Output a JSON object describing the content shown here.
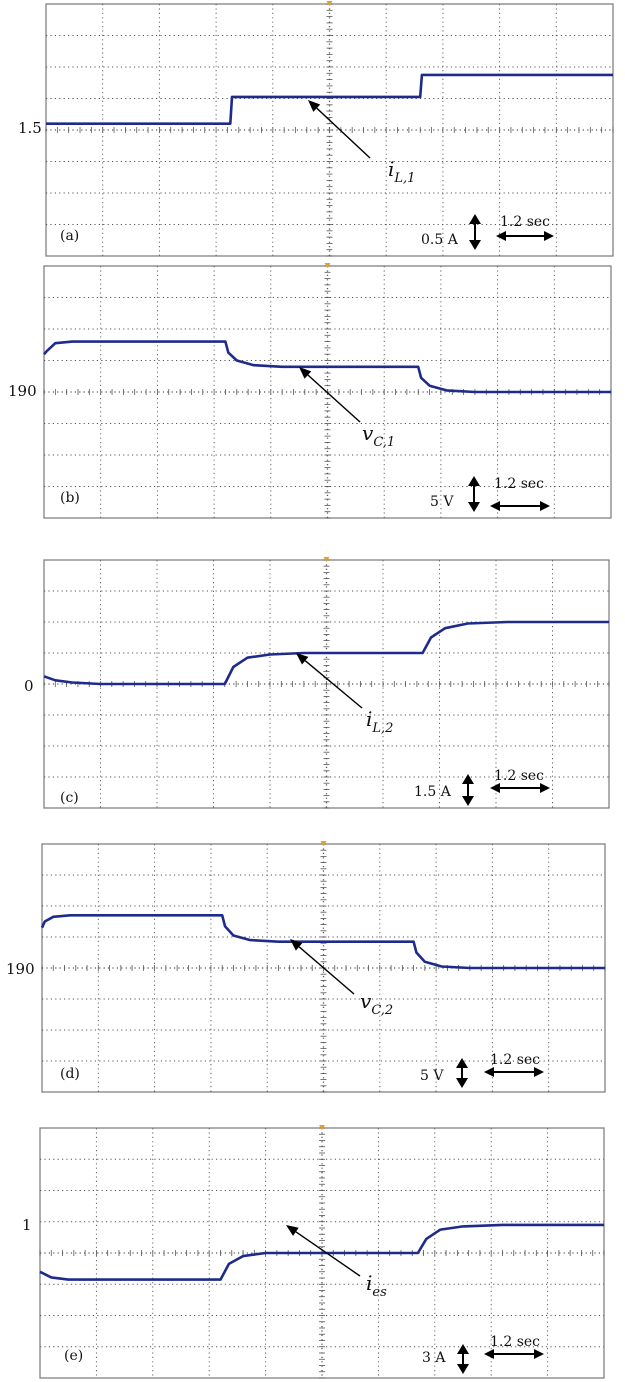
{
  "colors": {
    "trace": "#1f2b8a",
    "grid": "#555555",
    "frame": "#777777",
    "marker": "#e8a020"
  },
  "chart_data": [
    {
      "type": "line",
      "panel_label": "(a)",
      "ytick_label": "1.5",
      "signal": {
        "base": "i",
        "sub": "L,1"
      },
      "vertical_scale": "0.5 A",
      "time_scale": "1.2 sec",
      "xlim": [
        0,
        10
      ],
      "ylim": [
        -4,
        4
      ],
      "series": [
        {
          "x": [
            0,
            3.25,
            3.28,
            6.6,
            6.63,
            10
          ],
          "y": [
            0.2,
            0.2,
            1.05,
            1.05,
            1.75,
            1.75
          ]
        }
      ]
    },
    {
      "type": "line",
      "panel_label": "(b)",
      "ytick_label": "190",
      "signal": {
        "base": "v",
        "sub": "C,1"
      },
      "vertical_scale": "5 V",
      "time_scale": "1.2 sec",
      "xlim": [
        0,
        10
      ],
      "ylim": [
        -4,
        4
      ],
      "series": [
        {
          "x": [
            0,
            0.05,
            0.2,
            0.5,
            1.0,
            3.2,
            3.25,
            3.4,
            3.7,
            4.2,
            6.6,
            6.65,
            6.8,
            7.1,
            7.6,
            10
          ],
          "y": [
            1.2,
            1.3,
            1.55,
            1.6,
            1.6,
            1.6,
            1.25,
            1.0,
            0.85,
            0.8,
            0.8,
            0.45,
            0.2,
            0.05,
            0,
            0
          ]
        }
      ]
    },
    {
      "type": "line",
      "panel_label": "(c)",
      "ytick_label": "0",
      "signal": {
        "base": "i",
        "sub": "L,2"
      },
      "vertical_scale": "1.5 A",
      "time_scale": "1.2 sec",
      "xlim": [
        0,
        10
      ],
      "ylim": [
        -4,
        4
      ],
      "series": [
        {
          "x": [
            0,
            0.2,
            0.5,
            1.0,
            3.2,
            3.35,
            3.6,
            4.0,
            4.6,
            6.7,
            6.85,
            7.1,
            7.5,
            8.2,
            10
          ],
          "y": [
            0.25,
            0.12,
            0.05,
            0,
            0,
            0.55,
            0.85,
            0.95,
            1.0,
            1.0,
            1.5,
            1.8,
            1.95,
            2.0,
            2.0
          ]
        }
      ]
    },
    {
      "type": "line",
      "panel_label": "(d)",
      "ytick_label": "190",
      "signal": {
        "base": "v",
        "sub": "C,2"
      },
      "vertical_scale": "5 V",
      "time_scale": "1.2 sec",
      "xlim": [
        0,
        10
      ],
      "ylim": [
        -4,
        4
      ],
      "series": [
        {
          "x": [
            0,
            0.05,
            0.2,
            0.5,
            1.0,
            3.2,
            3.25,
            3.4,
            3.7,
            4.2,
            6.6,
            6.65,
            6.8,
            7.1,
            7.6,
            10
          ],
          "y": [
            1.3,
            1.5,
            1.65,
            1.7,
            1.7,
            1.7,
            1.35,
            1.05,
            0.9,
            0.85,
            0.85,
            0.5,
            0.2,
            0.05,
            0,
            0
          ]
        }
      ]
    },
    {
      "type": "line",
      "panel_label": "(e)",
      "ytick_label": "1",
      "signal": {
        "base": "i",
        "sub": "es"
      },
      "vertical_scale": "3 A",
      "time_scale": "1.2 sec",
      "xlim": [
        0,
        10
      ],
      "ylim": [
        -4,
        4
      ],
      "series": [
        {
          "x": [
            0,
            0.2,
            0.5,
            1.0,
            3.2,
            3.35,
            3.6,
            4.0,
            4.6,
            6.7,
            6.85,
            7.1,
            7.5,
            8.2,
            10
          ],
          "y": [
            -0.6,
            -0.78,
            -0.85,
            -0.85,
            -0.85,
            -0.35,
            -0.1,
            0,
            0,
            0,
            0.45,
            0.75,
            0.85,
            0.9,
            0.9
          ]
        }
      ]
    }
  ]
}
